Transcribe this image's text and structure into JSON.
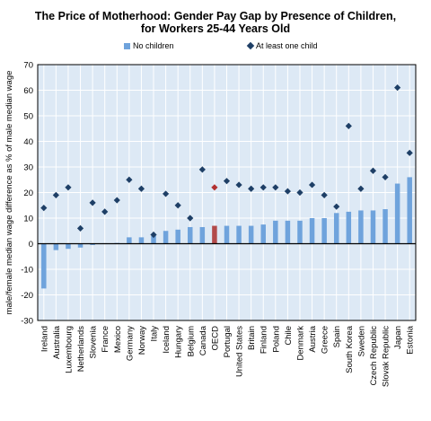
{
  "chart_data": {
    "type": "bar",
    "title": "The Price of Motherhood: Gender Pay Gap by Presence of Children,",
    "subtitle": "for Workers 25-44 Years Old",
    "ylabel": "male/female median wage difference as % of male median wage",
    "xlabel": "",
    "ylim": [
      -30,
      70
    ],
    "yticks": [
      -30,
      -20,
      -10,
      0,
      10,
      20,
      30,
      40,
      50,
      60,
      70
    ],
    "grid": true,
    "legend_position": "top",
    "categories": [
      "Ireland",
      "Australia",
      "Luxembourg",
      "Netherlands",
      "Slovenia",
      "France",
      "Mexico",
      "Germany",
      "Norway",
      "Italy",
      "Iceland",
      "Hungary",
      "Belgium",
      "Canada",
      "OECD",
      "Portugal",
      "United States",
      "Britain",
      "Finland",
      "Poland",
      "Chile",
      "Denmark",
      "Austria",
      "Greece",
      "Spain",
      "South Korea",
      "Sweden",
      "Czech Republic",
      "Slovak Republic",
      "Japan",
      "Estonia"
    ],
    "highlight_category": "OECD",
    "series": [
      {
        "name": "No children",
        "kind": "bar",
        "color": "#6fa3dc",
        "highlight_color": "#b24a4a",
        "values": [
          -17.5,
          -2.5,
          -2.0,
          -1.5,
          -0.5,
          0.2,
          0.3,
          2.5,
          2.5,
          3.0,
          5.0,
          5.5,
          6.5,
          6.5,
          7.0,
          7.0,
          7.0,
          7.0,
          7.5,
          9.0,
          9.0,
          9.0,
          10.0,
          10.0,
          12.0,
          12.5,
          13.0,
          13.0,
          13.5,
          23.5,
          26.0
        ]
      },
      {
        "name": "At least one child",
        "kind": "marker",
        "color": "#1e3f66",
        "highlight_color": "#b23030",
        "values": [
          14.0,
          19.0,
          22.0,
          6.0,
          16.0,
          12.5,
          17.0,
          25.0,
          21.5,
          3.5,
          19.5,
          15.0,
          10.0,
          29.0,
          22.0,
          24.5,
          23.0,
          21.5,
          22.0,
          22.0,
          20.5,
          20.0,
          23.0,
          19.0,
          14.5,
          46.0,
          21.5,
          28.5,
          26.0,
          61.0,
          35.5
        ]
      }
    ]
  },
  "colors": {
    "plot_background": "#dde9f5",
    "grid": "#ffffff",
    "zero_line": "#000000",
    "bar": "#6fa3dc",
    "marker": "#1e3f66",
    "highlight_bar": "#b24a4a",
    "highlight_marker": "#b23030"
  }
}
